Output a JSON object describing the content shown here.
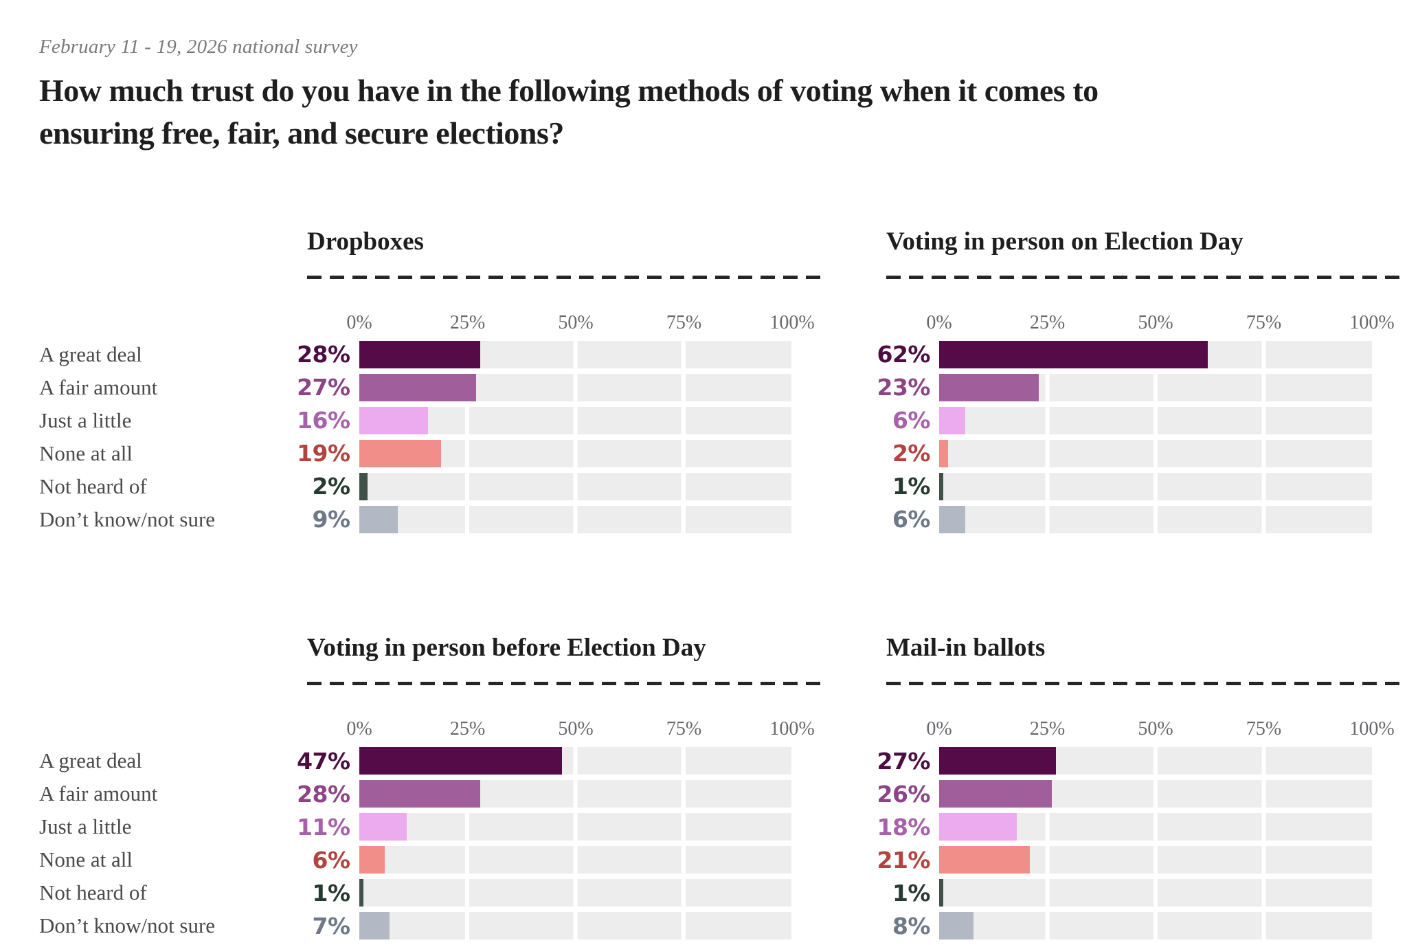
{
  "page": {
    "eyebrow": "February 11 - 19, 2026 national survey",
    "title_line1": "How much trust do you have in the following methods of voting when it comes to",
    "title_line2": "ensuring free, fair, and secure elections?"
  },
  "colors": {
    "bars": [
      "#550b48",
      "#a05f9b",
      "#ecaaef",
      "#f28e8a",
      "#41514a",
      "#b2b9c4"
    ],
    "labels": [
      "#4b0d42",
      "#8d4387",
      "#a761ab",
      "#b2433f",
      "#263a30",
      "#6e7988"
    ],
    "track": "#eeedee",
    "dash": "#262626",
    "axis_text": "#68686c",
    "category_text": "#4a4a4a"
  },
  "chart_data": [
    {
      "type": "bar",
      "title": "Dropboxes",
      "show_category_labels": true,
      "categories": [
        "A great deal",
        "A fair amount",
        "Just a little",
        "None at all",
        "Not heard of",
        "Don’t know/not sure"
      ],
      "values": [
        28,
        27,
        16,
        19,
        2,
        9
      ],
      "value_labels": [
        "28%",
        "27%",
        "16%",
        "19%",
        "2%",
        "9%"
      ],
      "x_ticks": [
        "0%",
        "25%",
        "50%",
        "75%",
        "100%"
      ],
      "xlim": [
        0,
        100
      ]
    },
    {
      "type": "bar",
      "title": "Voting in person on Election Day",
      "show_category_labels": false,
      "categories": [
        "A great deal",
        "A fair amount",
        "Just a little",
        "None at all",
        "Not heard of",
        "Don’t know/not sure"
      ],
      "values": [
        62,
        23,
        6,
        2,
        1,
        6
      ],
      "value_labels": [
        "62%",
        "23%",
        "6%",
        "2%",
        "1%",
        "6%"
      ],
      "x_ticks": [
        "0%",
        "25%",
        "50%",
        "75%",
        "100%"
      ],
      "xlim": [
        0,
        100
      ]
    },
    {
      "type": "bar",
      "title": "Voting in person before Election Day",
      "show_category_labels": true,
      "categories": [
        "A great deal",
        "A fair amount",
        "Just a little",
        "None at all",
        "Not heard of",
        "Don’t know/not sure"
      ],
      "values": [
        47,
        28,
        11,
        6,
        1,
        7
      ],
      "value_labels": [
        "47%",
        "28%",
        "11%",
        "6%",
        "1%",
        "7%"
      ],
      "x_ticks": [
        "0%",
        "25%",
        "50%",
        "75%",
        "100%"
      ],
      "xlim": [
        0,
        100
      ]
    },
    {
      "type": "bar",
      "title": "Mail-in ballots",
      "show_category_labels": false,
      "categories": [
        "A great deal",
        "A fair amount",
        "Just a little",
        "None at all",
        "Not heard of",
        "Don’t know/not sure"
      ],
      "values": [
        27,
        26,
        18,
        21,
        1,
        8
      ],
      "value_labels": [
        "27%",
        "26%",
        "18%",
        "21%",
        "1%",
        "8%"
      ],
      "x_ticks": [
        "0%",
        "25%",
        "50%",
        "75%",
        "100%"
      ],
      "xlim": [
        0,
        100
      ]
    }
  ]
}
